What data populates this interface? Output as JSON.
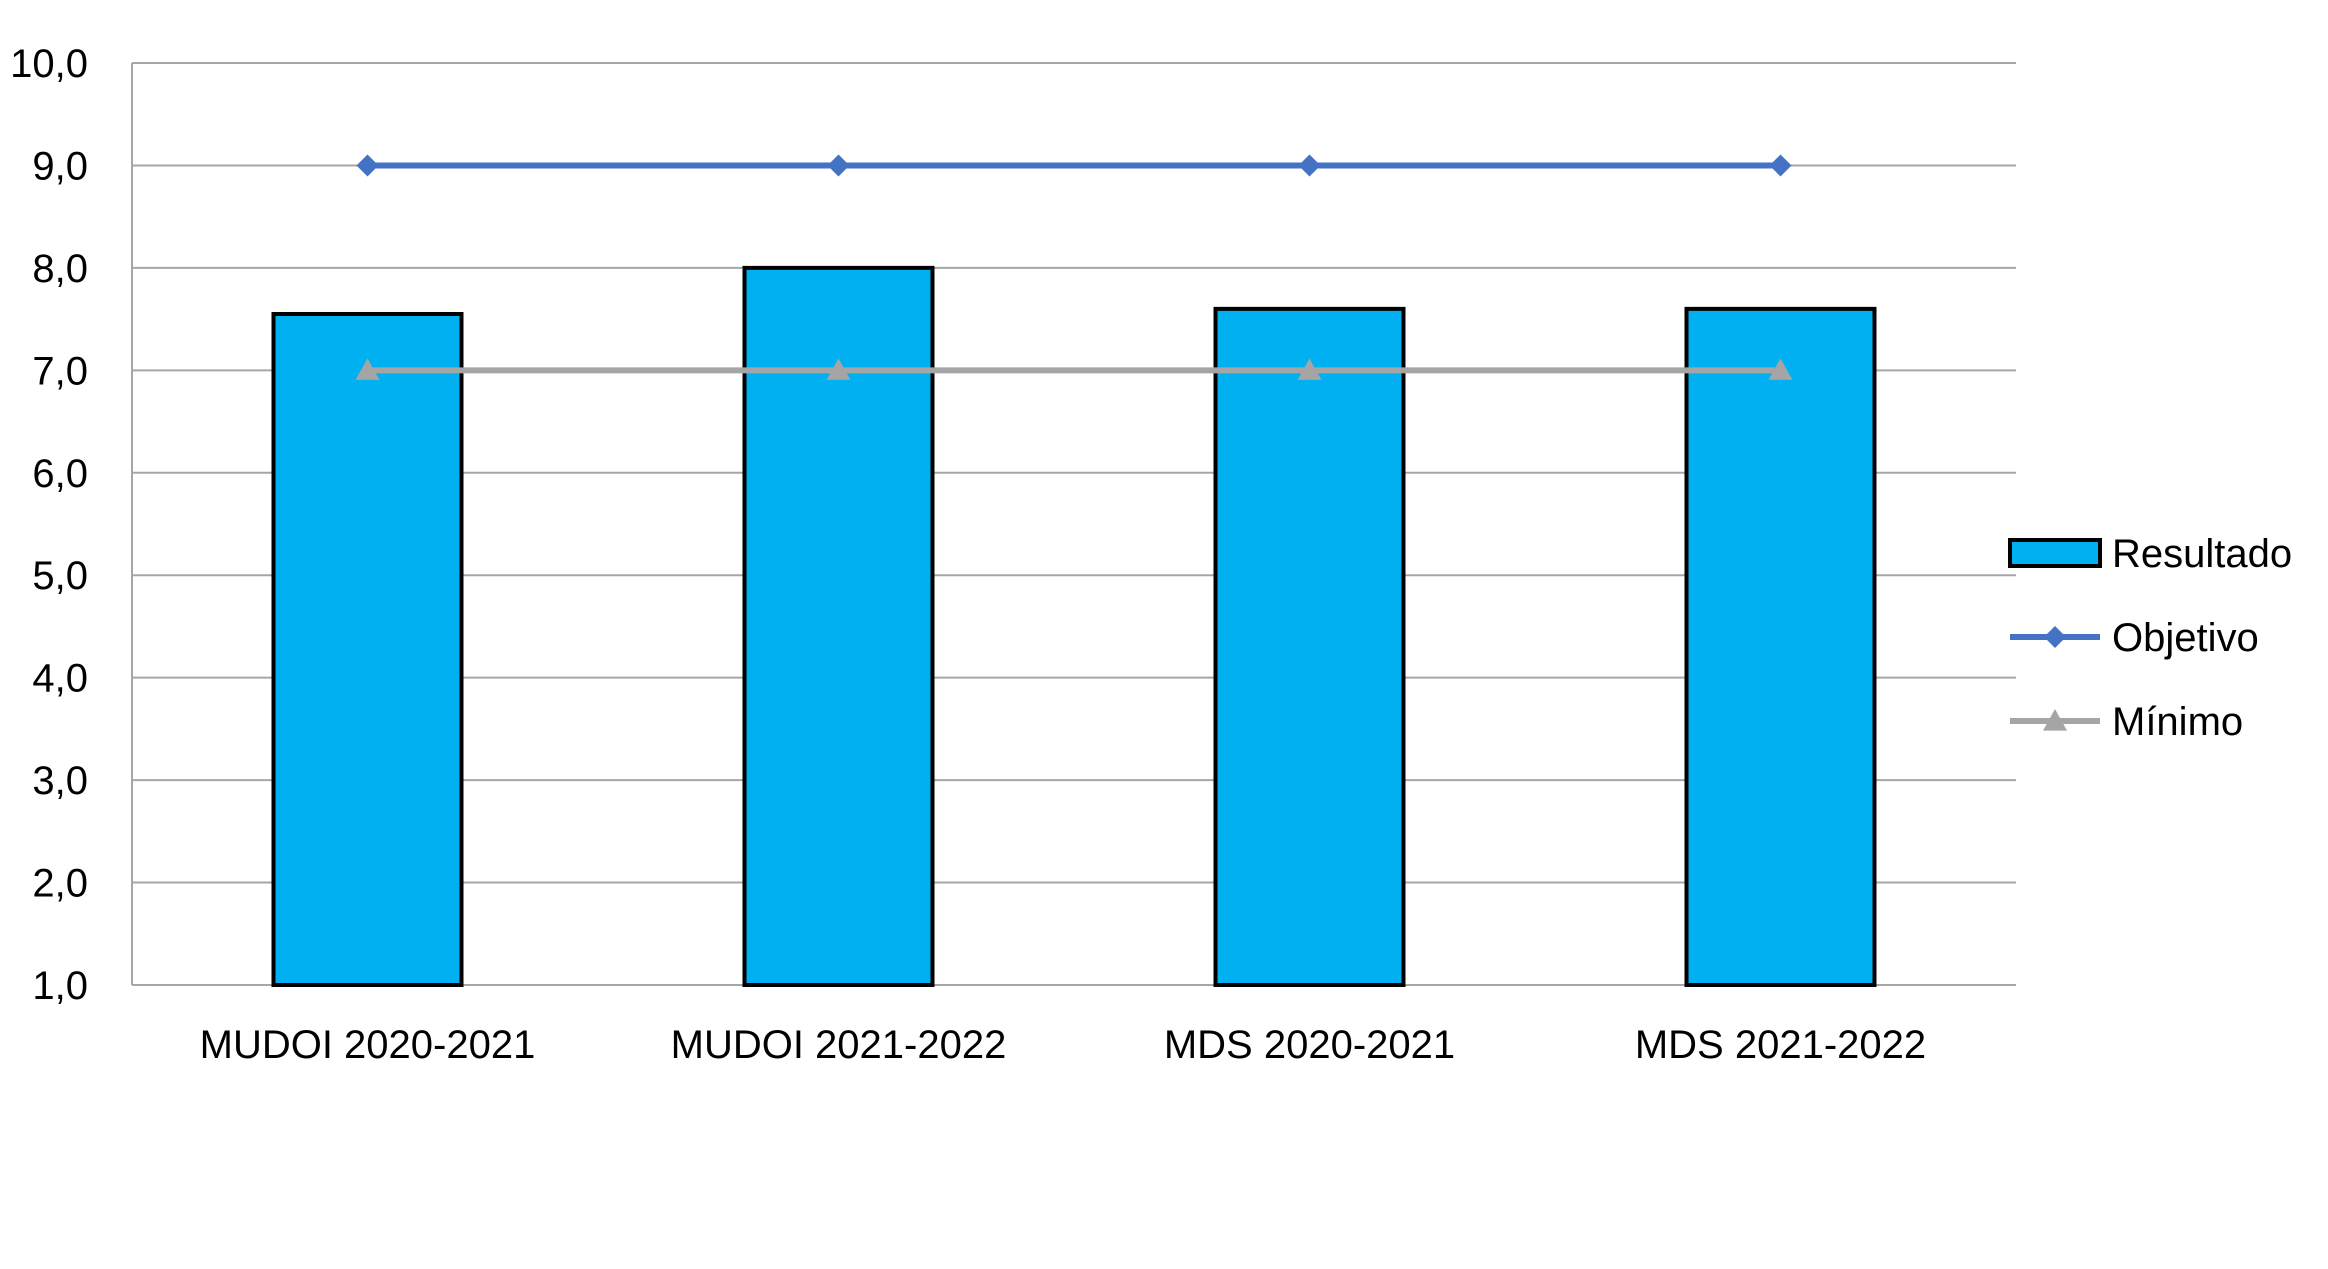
{
  "chart_data": {
    "type": "bar",
    "title": "",
    "xlabel": "",
    "ylabel": "",
    "categories": [
      "MUDOI 2020-2021",
      "MUDOI 2021-2022",
      "MDS 2020-2021",
      "MDS 2021-2022"
    ],
    "ylim": [
      1.0,
      10.0
    ],
    "yticks": [
      "1,0",
      "2,0",
      "3,0",
      "4,0",
      "5,0",
      "6,0",
      "7,0",
      "8,0",
      "9,0",
      "10,0"
    ],
    "grid": true,
    "legend_position": "right",
    "series": [
      {
        "name": "Resultado",
        "kind": "bar",
        "values": [
          7.55,
          8.0,
          7.6,
          7.6
        ],
        "color": "#00b0f0",
        "border_color": "#000000"
      },
      {
        "name": "Objetivo",
        "kind": "line",
        "marker": "diamond",
        "values": [
          9.0,
          9.0,
          9.0,
          9.0
        ],
        "color": "#4472c4"
      },
      {
        "name": "Mínimo",
        "kind": "line",
        "marker": "triangle",
        "values": [
          7.0,
          7.0,
          7.0,
          7.0
        ],
        "color": "#a5a5a5"
      }
    ]
  }
}
